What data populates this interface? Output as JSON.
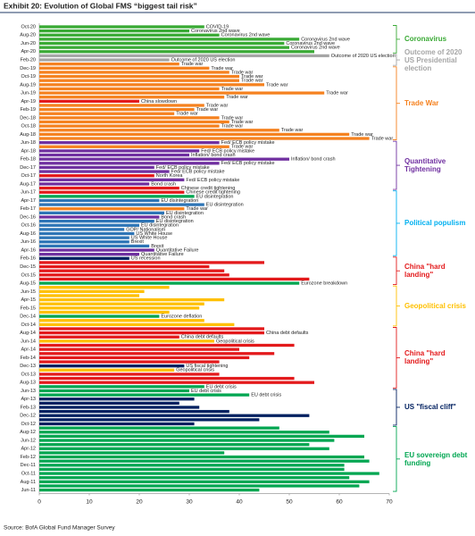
{
  "chart_data": {
    "type": "hbar",
    "title": "Exhibit 20: Evolution of Global FMS “biggest tail risk”",
    "source": "Source: BofA Global Fund Manager Survey",
    "categories": [
      "Oct-20",
      null,
      "Aug-20",
      null,
      "Jun-20",
      null,
      "Apr-20",
      null,
      "Feb-20",
      null,
      "Dec-19",
      null,
      "Oct-19",
      null,
      "Aug-19",
      null,
      "Jun-19",
      null,
      "Apr-19",
      null,
      "Feb-19",
      null,
      "Dec-18",
      null,
      "Oct-18",
      null,
      "Aug-18",
      null,
      "Jun-18",
      null,
      "Apr-18",
      null,
      "Feb-18",
      null,
      "Dec-17",
      null,
      "Oct-17",
      null,
      "Aug-17",
      null,
      "Jun-17",
      null,
      "Apr-17",
      null,
      "Feb-17",
      null,
      "Dec-16",
      null,
      "Oct-16",
      null,
      "Aug-16",
      null,
      "Jun-16",
      null,
      "Apr-16",
      null,
      "Feb-16",
      null,
      "Dec-15",
      null,
      "Oct-15",
      null,
      "Aug-15",
      null,
      "Jun-15",
      null,
      "Apr-15",
      null,
      "Feb-15",
      null,
      "Dec-14",
      null,
      "Oct-14",
      null,
      "Aug-14",
      null,
      "Jun-14",
      null,
      "Apr-14",
      null,
      "Feb-14",
      null,
      "Dec-13",
      null,
      "Oct-13",
      null,
      "Aug-13",
      null,
      "Jun-13",
      null,
      "Apr-13",
      null,
      "Feb-13",
      null,
      "Dec-12",
      null,
      "Oct-12",
      null,
      "Aug-12",
      null,
      "Jun-12",
      null,
      "Apr-12",
      null,
      "Feb-12",
      null,
      "Dec-11",
      null,
      "Oct-11",
      null,
      "Aug-11",
      null,
      "Jun-11"
    ],
    "values": [
      33,
      30,
      36,
      52,
      49,
      50,
      55,
      58,
      26,
      28,
      34,
      38,
      40,
      40,
      45,
      36,
      57,
      37,
      20,
      33,
      31,
      27,
      36,
      38,
      36,
      48,
      62,
      66,
      36,
      38,
      32,
      30,
      50,
      36,
      23,
      26,
      23,
      29,
      22,
      28,
      29,
      31,
      24,
      33,
      29,
      25,
      24,
      23,
      20,
      17,
      19,
      18,
      18,
      22,
      23,
      20,
      18,
      45,
      34,
      37,
      38,
      54,
      52,
      26,
      21,
      20,
      37,
      33,
      32,
      26,
      24,
      33,
      39,
      45,
      45,
      28,
      35,
      51,
      40,
      47,
      42,
      36,
      29,
      27,
      36,
      51,
      55,
      33,
      30,
      42,
      31,
      28,
      32,
      38,
      54,
      44,
      31,
      48,
      58,
      65,
      59,
      54,
      58,
      37,
      65,
      66,
      61,
      61,
      68,
      62,
      66,
      64,
      44
    ],
    "colors": [
      "#3aaa35",
      "#3aaa35",
      "#3aaa35",
      "#3aaa35",
      "#3aaa35",
      "#3aaa35",
      "#3aaa35",
      "#a6a6a6",
      "#a6a6a6",
      "#f58220",
      "#f58220",
      "#f58220",
      "#f58220",
      "#f58220",
      "#f58220",
      "#f58220",
      "#f58220",
      "#f58220",
      "#e31a1c",
      "#f58220",
      "#f58220",
      "#f58220",
      "#f58220",
      "#f58220",
      "#f58220",
      "#f58220",
      "#f58220",
      "#f58220",
      "#7030a0",
      "#f58220",
      "#7030a0",
      "#7030a0",
      "#7030a0",
      "#7030a0",
      "#7030a0",
      "#7030a0",
      "#e31a1c",
      "#7030a0",
      "#7030a0",
      "#e31a1c",
      "#e31a1c",
      "#00a651",
      "#2e75b6",
      "#2e75b6",
      "#f58220",
      "#2e75b6",
      "#7030a0",
      "#2e75b6",
      "#2e75b6",
      "#2e75b6",
      "#2e75b6",
      "#2e75b6",
      "#2e75b6",
      "#2e75b6",
      "#7030a0",
      "#7030a0",
      "#002060",
      "#e31a1c",
      "#e31a1c",
      "#e31a1c",
      "#e31a1c",
      "#e31a1c",
      "#00a651",
      "#ffc000",
      "#ffc000",
      "#ffc000",
      "#ffc000",
      "#ffc000",
      "#ffc000",
      "#ffc000",
      "#00a651",
      "#ffc000",
      "#ffc000",
      "#e31a1c",
      "#e31a1c",
      "#e31a1c",
      "#ffc000",
      "#e31a1c",
      "#e31a1c",
      "#e31a1c",
      "#e31a1c",
      "#e31a1c",
      "#002060",
      "#ffc000",
      "#e31a1c",
      "#e31a1c",
      "#e31a1c",
      "#00a651",
      "#00a651",
      "#00a651",
      "#002060",
      "#002060",
      "#002060",
      "#002060",
      "#002060",
      "#002060",
      "#002060",
      "#00a651",
      "#00a651",
      "#00a651",
      "#00a651",
      "#00a651",
      "#00a651",
      "#00a651",
      "#00a651",
      "#00a651",
      "#00a651",
      "#00a651",
      "#00a651",
      "#00a651",
      "#00a651",
      "#00a651",
      "#00a651"
    ],
    "bar_labels": [
      "COVID-19",
      "Coronavirus 2nd wave",
      "Coronavirus 2nd wave",
      "Coronavirus 2nd wave",
      "Coronavirus 2nd wave",
      "Coronavirus 2nd wave",
      null,
      "Outcome of 2020 US election",
      "Outcome of 2020 US election",
      "Trade war",
      "Trade war",
      "Trade war",
      "Trade war",
      "Trade war",
      "Trade war",
      "Trade war",
      "Trade war",
      "Trade war",
      "China slowdown",
      "Trade war",
      "Trade war",
      "Trade war",
      "Trade war",
      "Trade war",
      "Trade war",
      "Trade war",
      "Trade war",
      "Trade war",
      "Fed/ ECB policy mistake",
      "Trade war",
      "Fed/ ECB policy mistake",
      "Inflation/ bond crash",
      "Inflation/ bond crash",
      "Fed/ ECB policy mistake",
      "Fed/ ECB policy mistake",
      "Fed/ ECB policy mistake",
      "North Korea",
      "Fed/ ECB policy mistake",
      "Bond crash",
      "Chinese credit tightening",
      "Chinese credit tightening",
      "EU disintegration",
      "EU disintegration",
      "EU disintegration",
      "Trade war",
      "EU disintegration",
      "Bond crash",
      "EU disintegration",
      "EU disintegration",
      "GOP/ Nationalism",
      "US White House",
      "US White House",
      "Brexit",
      "Brexit",
      "Quantitative Failure",
      "Quantitative Failure",
      "US recession",
      null,
      null,
      null,
      null,
      null,
      "Eurozone breakdown",
      null,
      null,
      null,
      null,
      null,
      null,
      null,
      "Eurozone deflation",
      null,
      null,
      null,
      "China debt defaults",
      "China debt defaults",
      "Geopolitical crisis",
      null,
      null,
      null,
      null,
      null,
      "US fiscal tightening",
      "Geopolitical crisis",
      null,
      null,
      null,
      "EU debt crisis",
      "EU debt crisis",
      "EU debt crisis",
      null,
      null,
      null,
      null,
      null,
      null,
      null,
      null,
      null,
      null,
      null,
      null,
      null,
      null,
      null,
      null,
      null,
      null,
      null,
      null,
      null,
      null,
      null
    ],
    "groups": [
      {
        "label": "Coronavirus",
        "color": "#3aaa35"
      },
      {
        "label": "Outcome of 2020 US Presidential election",
        "color": "#a6a6a6"
      },
      {
        "label": "Trade War",
        "color": "#f58220"
      },
      {
        "label": "Quantitative Tightening",
        "color": "#7030a0"
      },
      {
        "label": "Political populism",
        "color": "#00b0f0"
      },
      {
        "label": "China \"hard landing\"",
        "color": "#e31a1c"
      },
      {
        "label": "Geopolitical crisis",
        "color": "#ffc000"
      },
      {
        "label": "China \"hard landing\"",
        "color": "#e31a1c"
      },
      {
        "label": "US \"fiscal cliff\"",
        "color": "#002060"
      },
      {
        "label": "EU sovereign debt funding",
        "color": "#00a651"
      }
    ],
    "xlim": [
      0,
      70
    ],
    "xticks": [
      0,
      10,
      20,
      30,
      40,
      50,
      60,
      70
    ]
  }
}
